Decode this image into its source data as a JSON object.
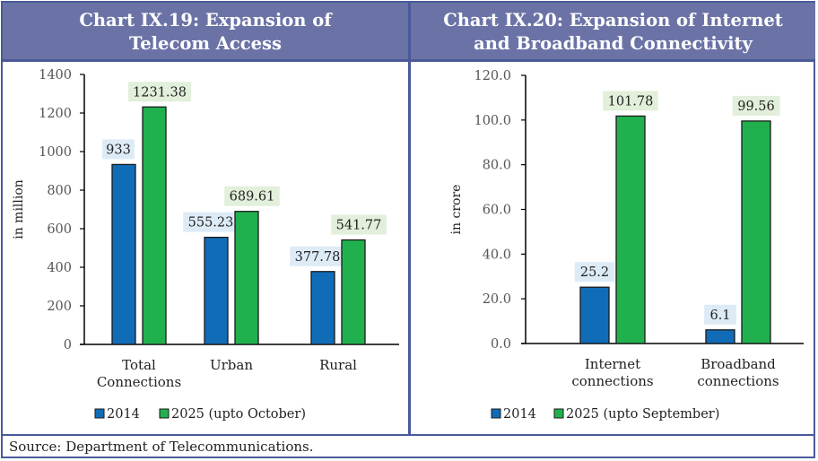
{
  "source": "Source: Department of Telecommunications.",
  "colors": {
    "series_2014": "#116cb8",
    "series_2025": "#20b14e",
    "label_bg_2014": "#ddebf7",
    "label_bg_2025": "#e2efda",
    "header_bg": "#6b73a6",
    "border": "#4a5a99"
  },
  "chart_data": [
    {
      "type": "bar",
      "title_line1": "Chart IX.19: Expansion of",
      "title_line2": "Telecom Access",
      "xlabel": "",
      "ylabel": "in million",
      "ylim": [
        0,
        1400
      ],
      "yticks": [
        0,
        200,
        400,
        600,
        800,
        1000,
        1200,
        1400
      ],
      "ytick_labels": [
        "0",
        "200",
        "400",
        "600",
        "800",
        "1000",
        "1200",
        "1400"
      ],
      "categories": [
        [
          "Total",
          "Connections"
        ],
        [
          "Urban"
        ],
        [
          "Rural"
        ]
      ],
      "series": [
        {
          "name": "2014",
          "values": [
            933,
            555.23,
            377.78
          ],
          "labels": [
            "933",
            "555.23",
            "377.78"
          ]
        },
        {
          "name": "2025 (upto October)",
          "values": [
            1231.38,
            689.61,
            541.77
          ],
          "labels": [
            "1231.38",
            "689.61",
            "541.77"
          ]
        }
      ],
      "legend_position": "bottom",
      "grid": false
    },
    {
      "type": "bar",
      "title_line1": "Chart IX.20: Expansion of Internet",
      "title_line2": "and Broadband Connectivity",
      "xlabel": "",
      "ylabel": "in crore",
      "ylim": [
        0,
        120
      ],
      "yticks": [
        0,
        20,
        40,
        60,
        80,
        100,
        120
      ],
      "ytick_labels": [
        "0.0",
        "20.0",
        "40.0",
        "60.0",
        "80.0",
        "100.0",
        "120.0"
      ],
      "categories": [
        [
          "Internet",
          "connections"
        ],
        [
          "Broadband",
          "connections"
        ]
      ],
      "series": [
        {
          "name": "2014",
          "values": [
            25.2,
            6.1
          ],
          "labels": [
            "25.2",
            "6.1"
          ]
        },
        {
          "name": "2025 (upto September)",
          "values": [
            101.78,
            99.56
          ],
          "labels": [
            "101.78",
            "99.56"
          ]
        }
      ],
      "legend_position": "bottom",
      "grid": false
    }
  ]
}
